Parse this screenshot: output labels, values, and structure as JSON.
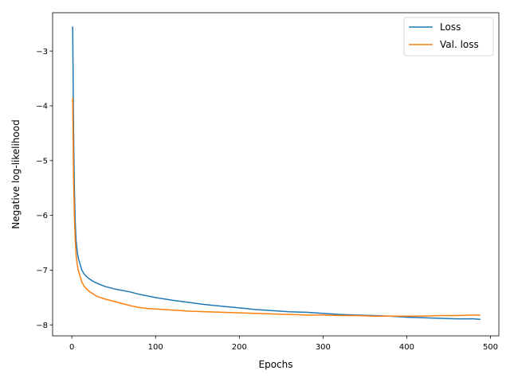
{
  "chart_data": {
    "type": "line",
    "title": "",
    "xlabel": "Epochs",
    "ylabel": "Negative log-likelihood",
    "xlim": [
      -23,
      510
    ],
    "ylim": [
      -8.2,
      -2.3
    ],
    "xticks": [
      0,
      100,
      200,
      300,
      400,
      500
    ],
    "yticks": [
      -8,
      -7,
      -6,
      -5,
      -4,
      -3
    ],
    "xtick_labels": [
      "0",
      "100",
      "200",
      "300",
      "400",
      "500"
    ],
    "ytick_labels": [
      "−8",
      "−7",
      "−6",
      "−5",
      "−4",
      "−3"
    ],
    "grid": false,
    "legend_position": "top-right",
    "series": [
      {
        "name": "Loss",
        "color": "#1f77b4",
        "x": [
          1,
          2,
          3,
          4,
          5,
          6,
          7,
          8,
          10,
          12,
          15,
          20,
          25,
          30,
          40,
          50,
          60,
          70,
          80,
          90,
          100,
          120,
          140,
          160,
          180,
          200,
          220,
          240,
          260,
          280,
          300,
          320,
          340,
          360,
          380,
          400,
          420,
          440,
          460,
          480,
          488
        ],
        "y": [
          -2.55,
          -4.4,
          -5.5,
          -6.1,
          -6.45,
          -6.6,
          -6.72,
          -6.8,
          -6.9,
          -7.0,
          -7.08,
          -7.15,
          -7.2,
          -7.24,
          -7.3,
          -7.34,
          -7.37,
          -7.4,
          -7.44,
          -7.47,
          -7.5,
          -7.55,
          -7.59,
          -7.63,
          -7.66,
          -7.69,
          -7.72,
          -7.74,
          -7.76,
          -7.77,
          -7.79,
          -7.81,
          -7.82,
          -7.83,
          -7.84,
          -7.86,
          -7.87,
          -7.88,
          -7.89,
          -7.89,
          -7.9
        ]
      },
      {
        "name": "Val. loss",
        "color": "#ff7f0e",
        "x": [
          1,
          2,
          3,
          4,
          5,
          6,
          7,
          8,
          10,
          12,
          15,
          20,
          25,
          30,
          40,
          50,
          60,
          70,
          80,
          90,
          100,
          120,
          140,
          160,
          180,
          200,
          220,
          240,
          260,
          280,
          300,
          320,
          340,
          360,
          380,
          400,
          420,
          440,
          460,
          480,
          488
        ],
        "y": [
          -3.85,
          -5.3,
          -6.0,
          -6.45,
          -6.7,
          -6.85,
          -6.95,
          -7.02,
          -7.12,
          -7.22,
          -7.3,
          -7.38,
          -7.43,
          -7.48,
          -7.53,
          -7.57,
          -7.61,
          -7.65,
          -7.68,
          -7.7,
          -7.71,
          -7.73,
          -7.75,
          -7.76,
          -7.77,
          -7.78,
          -7.79,
          -7.8,
          -7.81,
          -7.82,
          -7.82,
          -7.83,
          -7.83,
          -7.84,
          -7.84,
          -7.84,
          -7.84,
          -7.83,
          -7.83,
          -7.82,
          -7.82
        ]
      }
    ]
  }
}
